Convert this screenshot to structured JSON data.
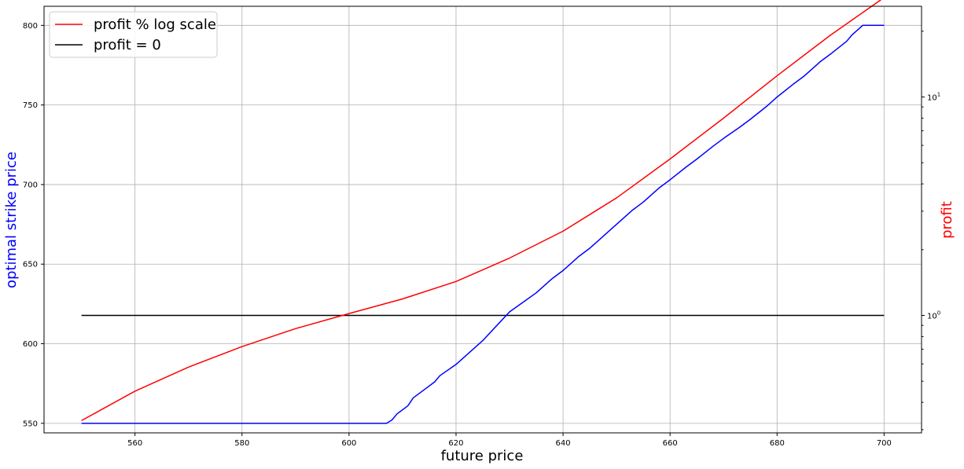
{
  "chart_data": {
    "type": "line",
    "xlabel": "future price",
    "ylabel_left": "optimal strike price",
    "ylabel_right": "profit",
    "xlim": [
      543,
      707
    ],
    "ylim_left": [
      544,
      812
    ],
    "ylim_right_log": [
      0.29,
      26
    ],
    "right_axis_scale": "log",
    "grid": true,
    "legend_position": "top-left",
    "x_ticks": [
      560,
      580,
      600,
      620,
      640,
      660,
      680,
      700
    ],
    "y_left_ticks": [
      550,
      600,
      650,
      700,
      750,
      800
    ],
    "y_right_major_ticks": [
      {
        "value": 1,
        "label_base": "10",
        "label_exp": "0"
      },
      {
        "value": 10,
        "label_base": "10",
        "label_exp": "1"
      }
    ],
    "y_right_minor_ticks": [
      0.3,
      0.4,
      0.5,
      0.6,
      0.7,
      0.8,
      0.9,
      2,
      3,
      4,
      5,
      6,
      7,
      8,
      9,
      20
    ],
    "colors": {
      "strike": "#0000ff",
      "profit": "#ff0000",
      "zero": "#000000",
      "left_label": "#0000ff",
      "right_label": "#ff0000",
      "grid": "#b0b0b0"
    },
    "series": [
      {
        "name": "optimal strike price",
        "axis": "left",
        "color": "#0000ff",
        "x": [
          550,
          607,
          608,
          609,
          611,
          612,
          614,
          616,
          617,
          620,
          625,
          630,
          635,
          638,
          640,
          643,
          645,
          648,
          650,
          653,
          655,
          658,
          660,
          663,
          665,
          668,
          670,
          673,
          675,
          678,
          680,
          683,
          685,
          688,
          690,
          693,
          694,
          695,
          696,
          700
        ],
        "y": [
          550,
          550,
          552,
          556,
          561,
          566,
          571,
          576,
          580,
          587,
          602,
          620,
          632,
          641,
          646,
          655,
          660,
          669,
          675,
          684,
          689,
          698,
          703,
          711,
          716,
          724,
          729,
          736,
          741,
          749,
          755,
          763,
          768,
          777,
          782,
          790,
          794,
          797,
          800,
          800
        ]
      },
      {
        "name": "profit % log scale",
        "axis": "right",
        "color": "#ff0000",
        "x": [
          550,
          560,
          570,
          580,
          590,
          600,
          610,
          620,
          630,
          640,
          650,
          660,
          670,
          680,
          690,
          700
        ],
        "y": [
          0.33,
          0.45,
          0.58,
          0.72,
          0.87,
          1.02,
          1.19,
          1.43,
          1.83,
          2.43,
          3.45,
          5.2,
          8.0,
          12.5,
          19.2,
          28.5
        ]
      },
      {
        "name": "profit = 0",
        "axis": "right",
        "color": "#000000",
        "x": [
          550,
          700
        ],
        "y": [
          1,
          1
        ]
      }
    ],
    "legend": [
      "profit % log scale",
      "profit = 0"
    ]
  }
}
